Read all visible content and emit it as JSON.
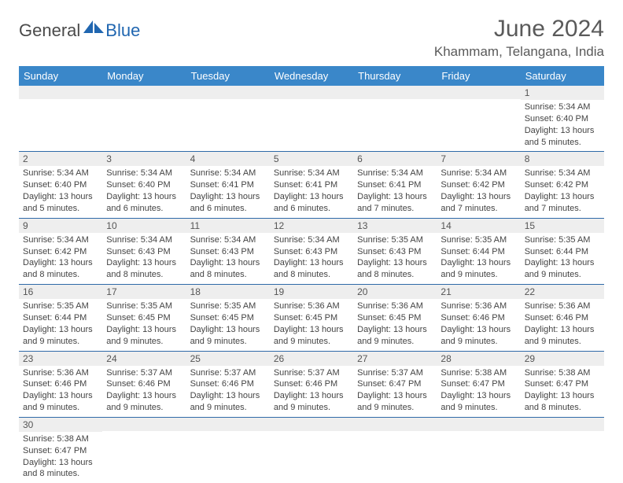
{
  "logo": {
    "text1": "General",
    "text2": "Blue"
  },
  "header": {
    "title": "June 2024",
    "location": "Khammam, Telangana, India"
  },
  "colors": {
    "header_bg": "#3a87c9",
    "header_text": "#ffffff",
    "daynum_bg": "#eeeeee",
    "cell_border": "#2f6aa8",
    "text_body": "#444444",
    "logo_blue": "#2066b0"
  },
  "daynames": [
    "Sunday",
    "Monday",
    "Tuesday",
    "Wednesday",
    "Thursday",
    "Friday",
    "Saturday"
  ],
  "weeks": [
    [
      {
        "n": "",
        "sr": "",
        "ss": "",
        "dl": ""
      },
      {
        "n": "",
        "sr": "",
        "ss": "",
        "dl": ""
      },
      {
        "n": "",
        "sr": "",
        "ss": "",
        "dl": ""
      },
      {
        "n": "",
        "sr": "",
        "ss": "",
        "dl": ""
      },
      {
        "n": "",
        "sr": "",
        "ss": "",
        "dl": ""
      },
      {
        "n": "",
        "sr": "",
        "ss": "",
        "dl": ""
      },
      {
        "n": "1",
        "sr": "Sunrise: 5:34 AM",
        "ss": "Sunset: 6:40 PM",
        "dl": "Daylight: 13 hours and 5 minutes."
      }
    ],
    [
      {
        "n": "2",
        "sr": "Sunrise: 5:34 AM",
        "ss": "Sunset: 6:40 PM",
        "dl": "Daylight: 13 hours and 5 minutes."
      },
      {
        "n": "3",
        "sr": "Sunrise: 5:34 AM",
        "ss": "Sunset: 6:40 PM",
        "dl": "Daylight: 13 hours and 6 minutes."
      },
      {
        "n": "4",
        "sr": "Sunrise: 5:34 AM",
        "ss": "Sunset: 6:41 PM",
        "dl": "Daylight: 13 hours and 6 minutes."
      },
      {
        "n": "5",
        "sr": "Sunrise: 5:34 AM",
        "ss": "Sunset: 6:41 PM",
        "dl": "Daylight: 13 hours and 6 minutes."
      },
      {
        "n": "6",
        "sr": "Sunrise: 5:34 AM",
        "ss": "Sunset: 6:41 PM",
        "dl": "Daylight: 13 hours and 7 minutes."
      },
      {
        "n": "7",
        "sr": "Sunrise: 5:34 AM",
        "ss": "Sunset: 6:42 PM",
        "dl": "Daylight: 13 hours and 7 minutes."
      },
      {
        "n": "8",
        "sr": "Sunrise: 5:34 AM",
        "ss": "Sunset: 6:42 PM",
        "dl": "Daylight: 13 hours and 7 minutes."
      }
    ],
    [
      {
        "n": "9",
        "sr": "Sunrise: 5:34 AM",
        "ss": "Sunset: 6:42 PM",
        "dl": "Daylight: 13 hours and 8 minutes."
      },
      {
        "n": "10",
        "sr": "Sunrise: 5:34 AM",
        "ss": "Sunset: 6:43 PM",
        "dl": "Daylight: 13 hours and 8 minutes."
      },
      {
        "n": "11",
        "sr": "Sunrise: 5:34 AM",
        "ss": "Sunset: 6:43 PM",
        "dl": "Daylight: 13 hours and 8 minutes."
      },
      {
        "n": "12",
        "sr": "Sunrise: 5:34 AM",
        "ss": "Sunset: 6:43 PM",
        "dl": "Daylight: 13 hours and 8 minutes."
      },
      {
        "n": "13",
        "sr": "Sunrise: 5:35 AM",
        "ss": "Sunset: 6:43 PM",
        "dl": "Daylight: 13 hours and 8 minutes."
      },
      {
        "n": "14",
        "sr": "Sunrise: 5:35 AM",
        "ss": "Sunset: 6:44 PM",
        "dl": "Daylight: 13 hours and 9 minutes."
      },
      {
        "n": "15",
        "sr": "Sunrise: 5:35 AM",
        "ss": "Sunset: 6:44 PM",
        "dl": "Daylight: 13 hours and 9 minutes."
      }
    ],
    [
      {
        "n": "16",
        "sr": "Sunrise: 5:35 AM",
        "ss": "Sunset: 6:44 PM",
        "dl": "Daylight: 13 hours and 9 minutes."
      },
      {
        "n": "17",
        "sr": "Sunrise: 5:35 AM",
        "ss": "Sunset: 6:45 PM",
        "dl": "Daylight: 13 hours and 9 minutes."
      },
      {
        "n": "18",
        "sr": "Sunrise: 5:35 AM",
        "ss": "Sunset: 6:45 PM",
        "dl": "Daylight: 13 hours and 9 minutes."
      },
      {
        "n": "19",
        "sr": "Sunrise: 5:36 AM",
        "ss": "Sunset: 6:45 PM",
        "dl": "Daylight: 13 hours and 9 minutes."
      },
      {
        "n": "20",
        "sr": "Sunrise: 5:36 AM",
        "ss": "Sunset: 6:45 PM",
        "dl": "Daylight: 13 hours and 9 minutes."
      },
      {
        "n": "21",
        "sr": "Sunrise: 5:36 AM",
        "ss": "Sunset: 6:46 PM",
        "dl": "Daylight: 13 hours and 9 minutes."
      },
      {
        "n": "22",
        "sr": "Sunrise: 5:36 AM",
        "ss": "Sunset: 6:46 PM",
        "dl": "Daylight: 13 hours and 9 minutes."
      }
    ],
    [
      {
        "n": "23",
        "sr": "Sunrise: 5:36 AM",
        "ss": "Sunset: 6:46 PM",
        "dl": "Daylight: 13 hours and 9 minutes."
      },
      {
        "n": "24",
        "sr": "Sunrise: 5:37 AM",
        "ss": "Sunset: 6:46 PM",
        "dl": "Daylight: 13 hours and 9 minutes."
      },
      {
        "n": "25",
        "sr": "Sunrise: 5:37 AM",
        "ss": "Sunset: 6:46 PM",
        "dl": "Daylight: 13 hours and 9 minutes."
      },
      {
        "n": "26",
        "sr": "Sunrise: 5:37 AM",
        "ss": "Sunset: 6:46 PM",
        "dl": "Daylight: 13 hours and 9 minutes."
      },
      {
        "n": "27",
        "sr": "Sunrise: 5:37 AM",
        "ss": "Sunset: 6:47 PM",
        "dl": "Daylight: 13 hours and 9 minutes."
      },
      {
        "n": "28",
        "sr": "Sunrise: 5:38 AM",
        "ss": "Sunset: 6:47 PM",
        "dl": "Daylight: 13 hours and 9 minutes."
      },
      {
        "n": "29",
        "sr": "Sunrise: 5:38 AM",
        "ss": "Sunset: 6:47 PM",
        "dl": "Daylight: 13 hours and 8 minutes."
      }
    ],
    [
      {
        "n": "30",
        "sr": "Sunrise: 5:38 AM",
        "ss": "Sunset: 6:47 PM",
        "dl": "Daylight: 13 hours and 8 minutes."
      },
      {
        "n": "",
        "sr": "",
        "ss": "",
        "dl": ""
      },
      {
        "n": "",
        "sr": "",
        "ss": "",
        "dl": ""
      },
      {
        "n": "",
        "sr": "",
        "ss": "",
        "dl": ""
      },
      {
        "n": "",
        "sr": "",
        "ss": "",
        "dl": ""
      },
      {
        "n": "",
        "sr": "",
        "ss": "",
        "dl": ""
      },
      {
        "n": "",
        "sr": "",
        "ss": "",
        "dl": ""
      }
    ]
  ]
}
